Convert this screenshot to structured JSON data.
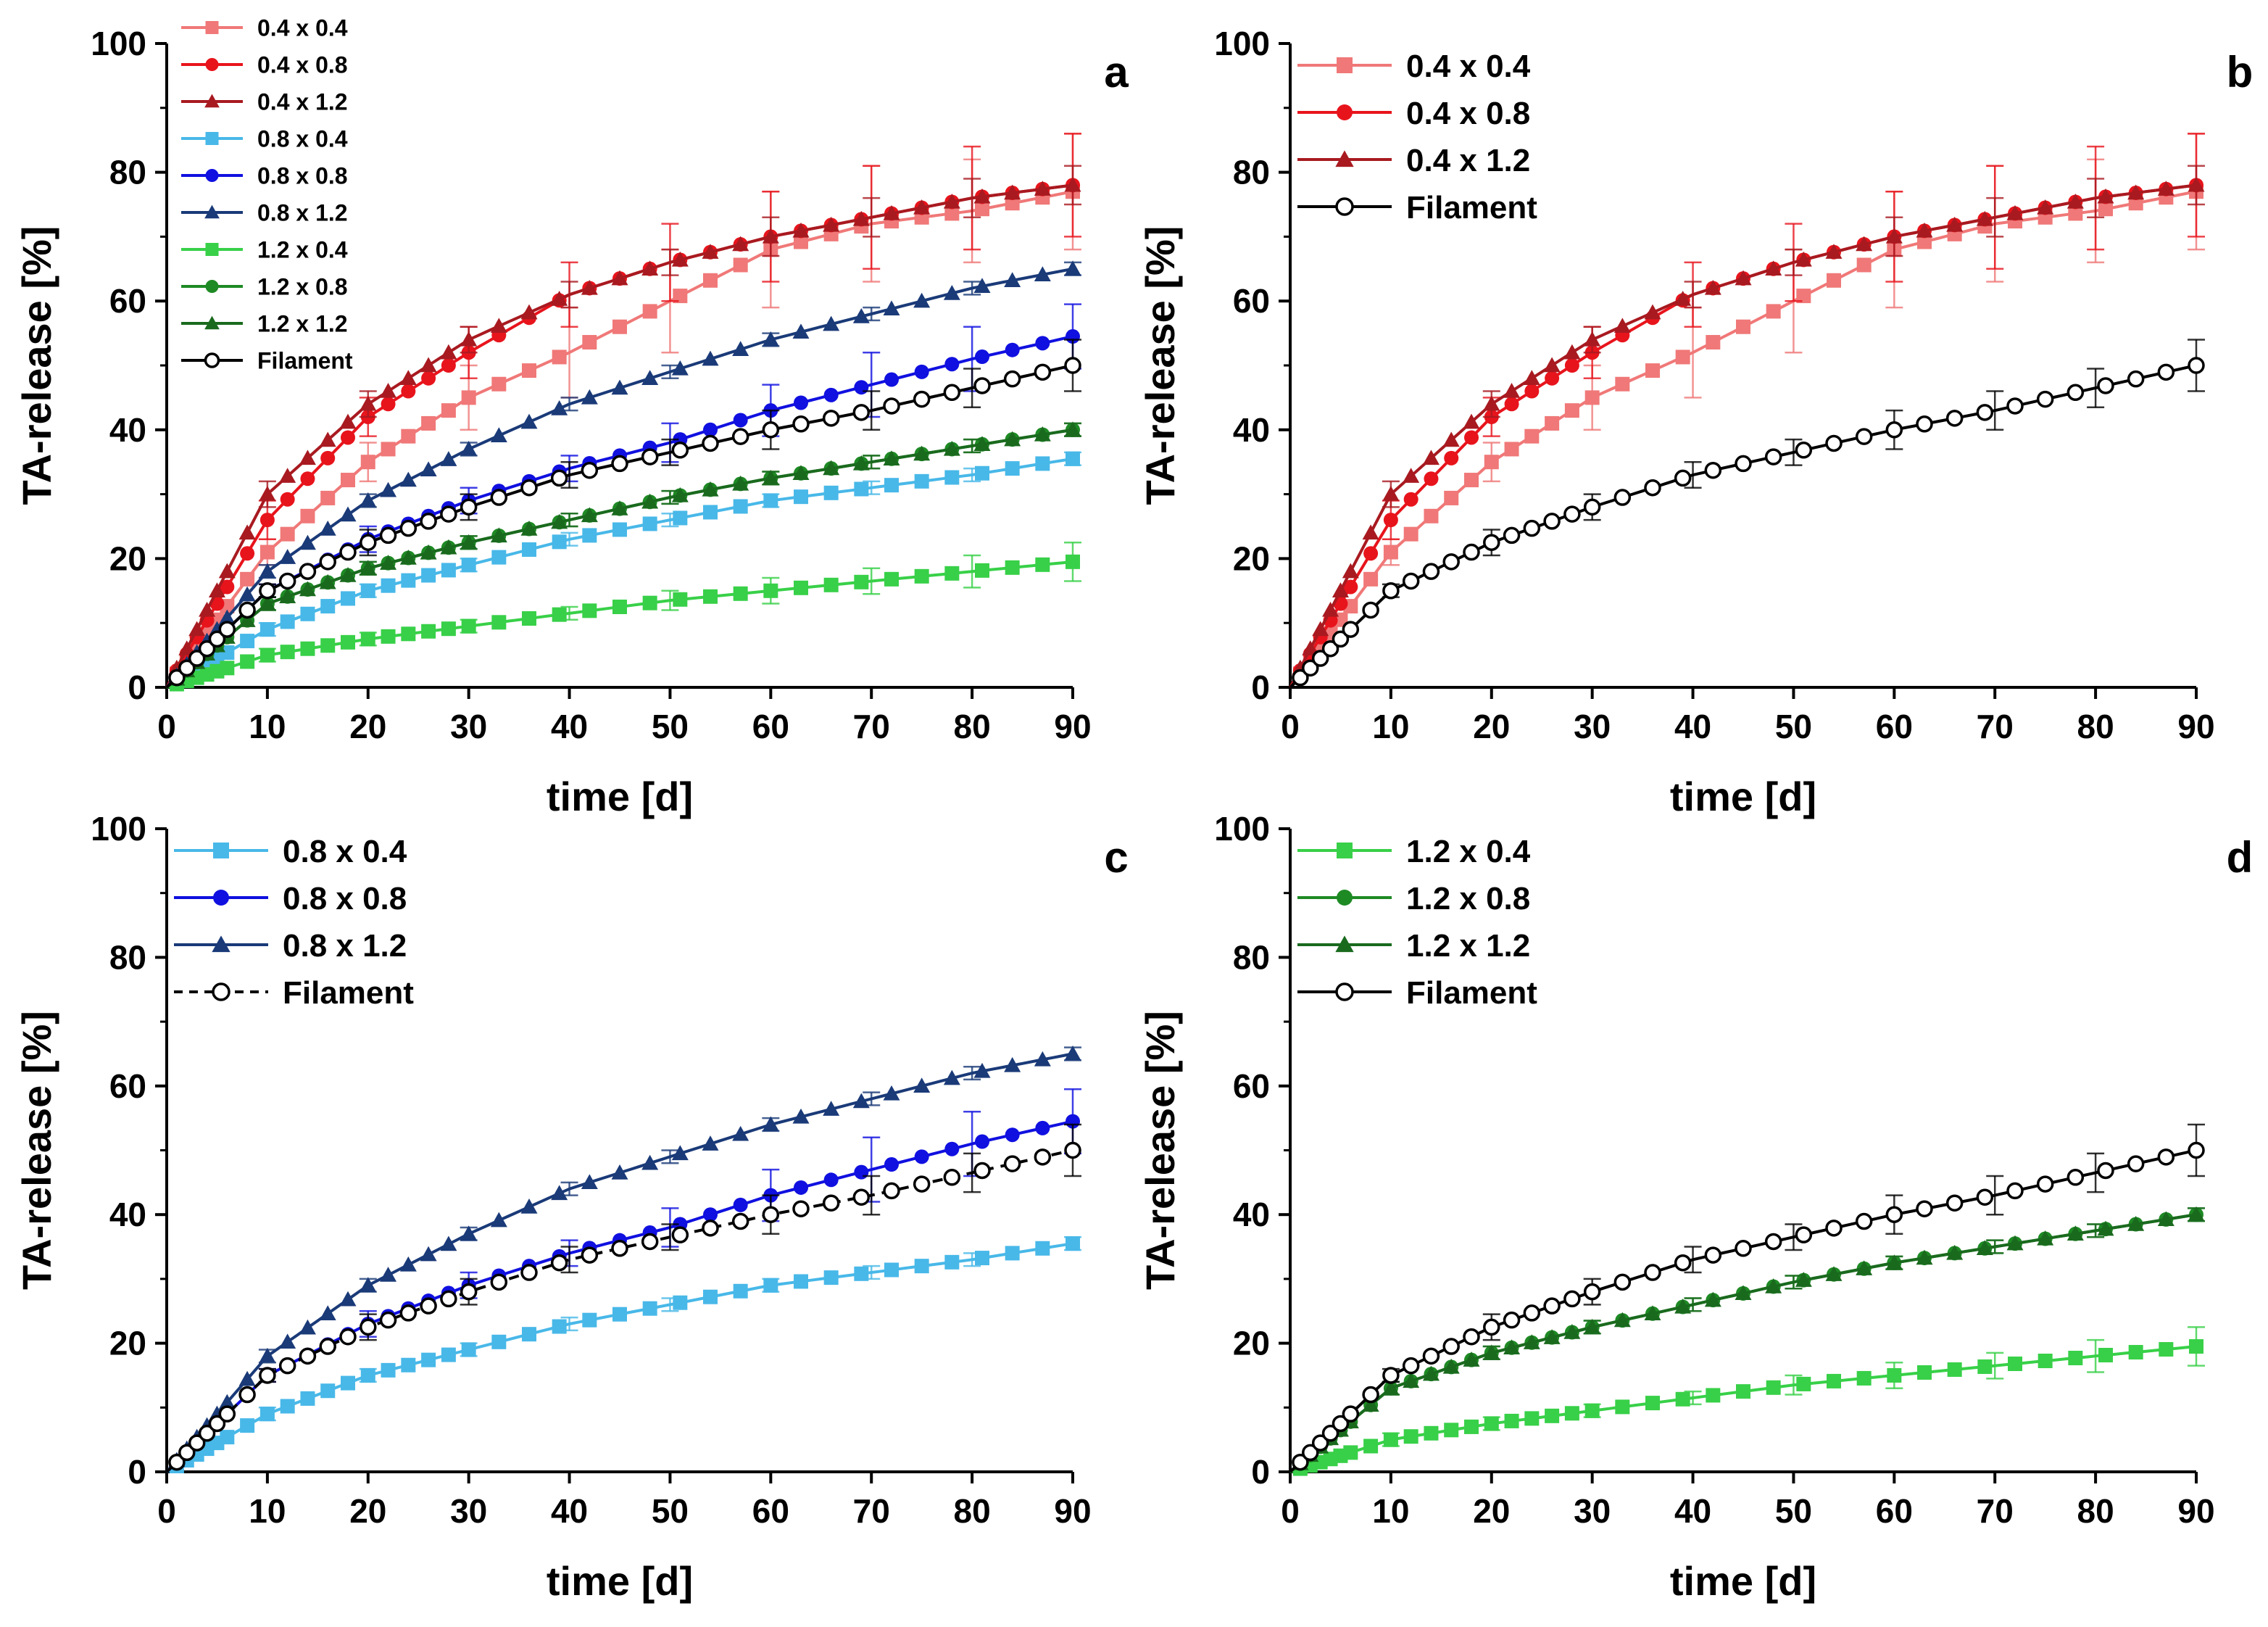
{
  "figure": {
    "panel_count": 4
  },
  "series_defs": {
    "s44": {
      "label": "0.4 x 0.4",
      "color": "#f07878",
      "marker": "square"
    },
    "s48": {
      "label": "0.4 x 0.8",
      "color": "#e8141c",
      "marker": "circle"
    },
    "s412": {
      "label": "0.4 x 1.2",
      "color": "#a81a20",
      "marker": "triangle"
    },
    "s84": {
      "label": "0.8 x 0.4",
      "color": "#48b8e8",
      "marker": "square"
    },
    "s88": {
      "label": "0.8 x 0.8",
      "color": "#1010e0",
      "marker": "circle"
    },
    "s812": {
      "label": "0.8 x 1.2",
      "color": "#1a3a78",
      "marker": "triangle"
    },
    "s124": {
      "label": "1.2 x 0.4",
      "color": "#38d048",
      "marker": "square"
    },
    "s128": {
      "label": "1.2 x 0.8",
      "color": "#1e8a24",
      "marker": "circle"
    },
    "s1212": {
      "label": "1.2 x 1.2",
      "color": "#1a6a1e",
      "marker": "triangle"
    },
    "fil": {
      "label": "Filament",
      "color": "#000000",
      "marker": "open-circle"
    }
  },
  "chart_data": [
    {
      "panel": "a",
      "type": "line",
      "xlabel": "time [d]",
      "ylabel": "TA-release [%]",
      "xlim": [
        0,
        90
      ],
      "ylim": [
        0,
        100
      ],
      "xticks": [
        0,
        10,
        20,
        30,
        40,
        50,
        60,
        70,
        80,
        90
      ],
      "yticks": [
        0,
        20,
        40,
        60,
        80,
        100
      ],
      "legend_position": "top-left",
      "series": [
        {
          "key": "s44",
          "name": "0.4 x 0.4",
          "x": [
            0,
            10,
            20,
            30,
            40,
            50,
            60,
            70,
            80,
            90
          ],
          "values": [
            0,
            21,
            35,
            45,
            52,
            60,
            68,
            72,
            74,
            77
          ],
          "error": [
            0,
            2,
            3,
            5,
            7,
            8,
            9,
            9,
            8,
            9
          ],
          "line": "solid"
        },
        {
          "key": "s48",
          "name": "0.4 x 0.8",
          "x": [
            0,
            10,
            20,
            30,
            40,
            50,
            60,
            70,
            80,
            90
          ],
          "values": [
            0,
            26,
            42,
            52,
            61,
            66,
            70,
            73,
            76,
            78
          ],
          "error": [
            0,
            3,
            3,
            4,
            5,
            6,
            7,
            8,
            8,
            8
          ],
          "line": "solid"
        },
        {
          "key": "s412",
          "name": "0.4 x 1.2",
          "x": [
            0,
            10,
            20,
            30,
            40,
            50,
            60,
            70,
            80,
            90
          ],
          "values": [
            0,
            30,
            44,
            54,
            61,
            66,
            70,
            73,
            76,
            78
          ],
          "error": [
            0,
            2,
            2,
            2,
            2,
            2,
            3,
            3,
            3,
            3
          ],
          "line": "solid"
        },
        {
          "key": "s84",
          "name": "0.8 x 0.4",
          "x": [
            0,
            10,
            20,
            30,
            40,
            50,
            60,
            70,
            80,
            90
          ],
          "values": [
            0,
            9,
            15,
            19,
            23,
            26,
            29,
            31,
            33,
            35.5
          ],
          "error": [
            0,
            1,
            1,
            1,
            1,
            1,
            1,
            1,
            1,
            1
          ],
          "line": "solid"
        },
        {
          "key": "s88",
          "name": "0.8 x 0.8",
          "x": [
            0,
            10,
            20,
            30,
            40,
            50,
            60,
            70,
            80,
            90
          ],
          "values": [
            0,
            15,
            23,
            29,
            34,
            38,
            43,
            47,
            51,
            54.5
          ],
          "error": [
            0,
            1,
            2,
            2,
            2,
            3,
            4,
            5,
            5,
            5
          ],
          "line": "solid"
        },
        {
          "key": "s812",
          "name": "0.8 x 1.2",
          "x": [
            0,
            10,
            20,
            30,
            40,
            50,
            60,
            70,
            80,
            90
          ],
          "values": [
            0,
            18,
            29,
            37,
            44,
            49,
            54,
            58,
            62,
            65
          ],
          "error": [
            0,
            1,
            1,
            1,
            1,
            1,
            1,
            1,
            1,
            1
          ],
          "line": "solid"
        },
        {
          "key": "s124",
          "name": "1.2 x 0.4",
          "x": [
            0,
            10,
            20,
            30,
            40,
            50,
            60,
            70,
            80,
            90
          ],
          "values": [
            0,
            5,
            7.5,
            9.5,
            11.5,
            13.5,
            15,
            16.5,
            18,
            19.5
          ],
          "error": [
            0,
            1,
            1,
            1,
            1,
            1.5,
            2,
            2,
            2.5,
            3
          ],
          "line": "solid"
        },
        {
          "key": "s128",
          "name": "1.2 x 0.8",
          "x": [
            0,
            10,
            20,
            30,
            40,
            50,
            60,
            70,
            80,
            90
          ],
          "values": [
            0,
            13,
            18.5,
            22.5,
            26,
            29.5,
            32.5,
            35,
            37.5,
            40
          ],
          "error": [
            0,
            1,
            1,
            1,
            1,
            1,
            1,
            1,
            1,
            1
          ],
          "line": "solid"
        },
        {
          "key": "s1212",
          "name": "1.2 x 1.2",
          "x": [
            0,
            10,
            20,
            30,
            40,
            50,
            60,
            70,
            80,
            90
          ],
          "values": [
            0,
            13,
            18.5,
            22.5,
            26,
            29.5,
            32.5,
            35,
            37.5,
            40
          ],
          "error": [
            0,
            1,
            1,
            1,
            1,
            1,
            1,
            1,
            1,
            1
          ],
          "line": "solid"
        },
        {
          "key": "fil",
          "name": "Filament",
          "x": [
            0,
            10,
            20,
            30,
            40,
            50,
            60,
            70,
            80,
            90
          ],
          "values": [
            0,
            15,
            22.5,
            28,
            33,
            36.5,
            40,
            43,
            46.5,
            50
          ],
          "error": [
            0,
            1,
            2,
            2,
            2,
            2,
            3,
            3,
            3,
            4
          ],
          "line": "solid"
        }
      ]
    },
    {
      "panel": "b",
      "type": "line",
      "xlabel": "time [d]",
      "ylabel": "TA-release [%]",
      "xlim": [
        0,
        90
      ],
      "ylim": [
        0,
        100
      ],
      "xticks": [
        0,
        10,
        20,
        30,
        40,
        50,
        60,
        70,
        80,
        90
      ],
      "yticks": [
        0,
        20,
        40,
        60,
        80,
        100
      ],
      "legend_position": "top-left",
      "series": [
        {
          "key": "s44",
          "name": "0.4 x 0.4",
          "x": [
            0,
            10,
            20,
            30,
            40,
            50,
            60,
            70,
            80,
            90
          ],
          "values": [
            0,
            21,
            35,
            45,
            52,
            60,
            68,
            72,
            74,
            77
          ],
          "error": [
            0,
            2,
            3,
            5,
            7,
            8,
            9,
            9,
            8,
            9
          ],
          "line": "solid"
        },
        {
          "key": "s48",
          "name": "0.4 x 0.8",
          "x": [
            0,
            10,
            20,
            30,
            40,
            50,
            60,
            70,
            80,
            90
          ],
          "values": [
            0,
            26,
            42,
            52,
            61,
            66,
            70,
            73,
            76,
            78
          ],
          "error": [
            0,
            3,
            3,
            4,
            5,
            6,
            7,
            8,
            8,
            8
          ],
          "line": "solid"
        },
        {
          "key": "s412",
          "name": "0.4 x 1.2",
          "x": [
            0,
            10,
            20,
            30,
            40,
            50,
            60,
            70,
            80,
            90
          ],
          "values": [
            0,
            30,
            44,
            54,
            61,
            66,
            70,
            73,
            76,
            78
          ],
          "error": [
            0,
            2,
            2,
            2,
            2,
            2,
            3,
            3,
            3,
            3
          ],
          "line": "solid"
        },
        {
          "key": "fil",
          "name": "Filament",
          "x": [
            0,
            10,
            20,
            30,
            40,
            50,
            60,
            70,
            80,
            90
          ],
          "values": [
            0,
            15,
            22.5,
            28,
            33,
            36.5,
            40,
            43,
            46.5,
            50
          ],
          "error": [
            0,
            1,
            2,
            2,
            2,
            2,
            3,
            3,
            3,
            4
          ],
          "line": "solid"
        }
      ]
    },
    {
      "panel": "c",
      "type": "line",
      "xlabel": "time [d]",
      "ylabel": "TA-release [%]",
      "xlim": [
        0,
        90
      ],
      "ylim": [
        0,
        100
      ],
      "xticks": [
        0,
        10,
        20,
        30,
        40,
        50,
        60,
        70,
        80,
        90
      ],
      "yticks": [
        0,
        20,
        40,
        60,
        80,
        100
      ],
      "legend_position": "top-left",
      "series": [
        {
          "key": "s84",
          "name": "0.8 x 0.4",
          "x": [
            0,
            10,
            20,
            30,
            40,
            50,
            60,
            70,
            80,
            90
          ],
          "values": [
            0,
            9,
            15,
            19,
            23,
            26,
            29,
            31,
            33,
            35.5
          ],
          "error": [
            0,
            1,
            1,
            1,
            1,
            1,
            1,
            1,
            1,
            1
          ],
          "line": "solid"
        },
        {
          "key": "s88",
          "name": "0.8 x 0.8",
          "x": [
            0,
            10,
            20,
            30,
            40,
            50,
            60,
            70,
            80,
            90
          ],
          "values": [
            0,
            15,
            23,
            29,
            34,
            38,
            43,
            47,
            51,
            54.5
          ],
          "error": [
            0,
            1,
            2,
            2,
            2,
            3,
            4,
            5,
            5,
            5
          ],
          "line": "solid"
        },
        {
          "key": "s812",
          "name": "0.8 x 1.2",
          "x": [
            0,
            10,
            20,
            30,
            40,
            50,
            60,
            70,
            80,
            90
          ],
          "values": [
            0,
            18,
            29,
            37,
            44,
            49,
            54,
            58,
            62,
            65
          ],
          "error": [
            0,
            1,
            1,
            1,
            1,
            1,
            1,
            1,
            1,
            1
          ],
          "line": "solid"
        },
        {
          "key": "fil",
          "name": "Filament",
          "x": [
            0,
            10,
            20,
            30,
            40,
            50,
            60,
            70,
            80,
            90
          ],
          "values": [
            0,
            15,
            22.5,
            28,
            33,
            36.5,
            40,
            43,
            46.5,
            50
          ],
          "error": [
            0,
            1,
            2,
            2,
            2,
            2,
            3,
            3,
            3,
            4
          ],
          "line": "dashed"
        }
      ]
    },
    {
      "panel": "d",
      "type": "line",
      "xlabel": "time [d]",
      "ylabel": "TA-release [%]",
      "xlim": [
        0,
        90
      ],
      "ylim": [
        0,
        100
      ],
      "xticks": [
        0,
        10,
        20,
        30,
        40,
        50,
        60,
        70,
        80,
        90
      ],
      "yticks": [
        0,
        20,
        40,
        60,
        80,
        100
      ],
      "legend_position": "top-left",
      "series": [
        {
          "key": "s124",
          "name": "1.2 x 0.4",
          "x": [
            0,
            10,
            20,
            30,
            40,
            50,
            60,
            70,
            80,
            90
          ],
          "values": [
            0,
            5,
            7.5,
            9.5,
            11.5,
            13.5,
            15,
            16.5,
            18,
            19.5
          ],
          "error": [
            0,
            1,
            1,
            1,
            1,
            1.5,
            2,
            2,
            2.5,
            3
          ],
          "line": "solid"
        },
        {
          "key": "s128",
          "name": "1.2 x 0.8",
          "x": [
            0,
            10,
            20,
            30,
            40,
            50,
            60,
            70,
            80,
            90
          ],
          "values": [
            0,
            13,
            18.5,
            22.5,
            26,
            29.5,
            32.5,
            35,
            37.5,
            40
          ],
          "error": [
            0,
            1,
            1,
            1,
            1,
            1,
            1,
            1,
            1,
            1
          ],
          "line": "solid"
        },
        {
          "key": "s1212",
          "name": "1.2 x 1.2",
          "x": [
            0,
            10,
            20,
            30,
            40,
            50,
            60,
            70,
            80,
            90
          ],
          "values": [
            0,
            13,
            18.5,
            22.5,
            26,
            29.5,
            32.5,
            35,
            37.5,
            40
          ],
          "error": [
            0,
            1,
            1,
            1,
            1,
            1,
            1,
            1,
            1,
            1
          ],
          "line": "solid"
        },
        {
          "key": "fil",
          "name": "Filament",
          "x": [
            0,
            10,
            20,
            30,
            40,
            50,
            60,
            70,
            80,
            90
          ],
          "values": [
            0,
            15,
            22.5,
            28,
            33,
            36.5,
            40,
            43,
            46.5,
            50
          ],
          "error": [
            0,
            1,
            2,
            2,
            2,
            2,
            3,
            3,
            3,
            4
          ],
          "line": "solid"
        }
      ]
    }
  ]
}
